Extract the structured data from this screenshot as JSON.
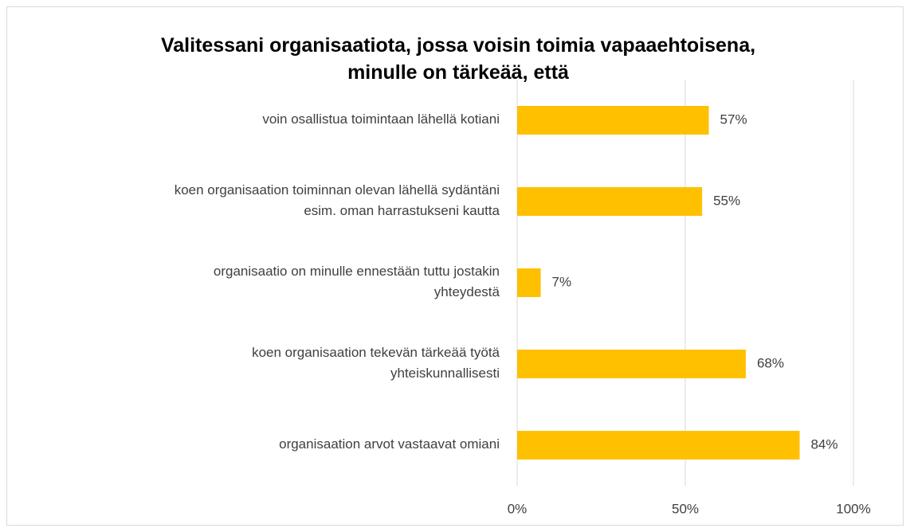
{
  "chart_data": {
    "type": "barh",
    "title": "Valitessani organisaatiota, jossa voisin toimia vapaaehtoisena,\nminulle on tärkeää, että",
    "categories": [
      "voin osallistua toimintaan lähellä kotiani",
      "koen organisaation toiminnan olevan lähellä sydäntäni\nesim. oman harrastukseni kautta",
      "organisaatio on minulle ennestään tuttu jostakin\nyhteydestä",
      "koen organisaation tekevän tärkeää työtä\nyhteiskunnallisesti",
      "organisaation arvot vastaavat omiani"
    ],
    "values": [
      57,
      55,
      7,
      68,
      84
    ],
    "value_labels": [
      "57%",
      "55%",
      "7%",
      "68%",
      "84%"
    ],
    "color": "#ffc000",
    "xlim": [
      0,
      100
    ],
    "xticks": [
      {
        "value": 0,
        "label": "0%"
      },
      {
        "value": 50,
        "label": "50%"
      },
      {
        "value": 100,
        "label": "100%"
      }
    ],
    "grid": true
  }
}
